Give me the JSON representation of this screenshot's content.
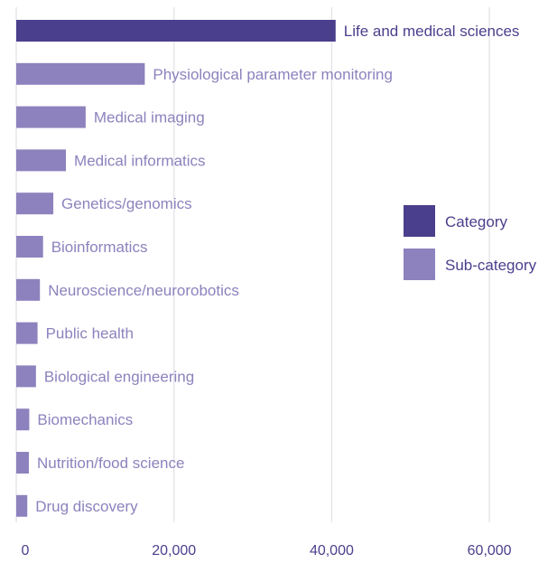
{
  "chart_data": {
    "type": "bar",
    "orientation": "horizontal",
    "title": "",
    "xlabel": "",
    "ylabel": "",
    "xlim": [
      0,
      68000
    ],
    "x_ticks": [
      0,
      20000,
      40000,
      60000
    ],
    "x_tick_labels": [
      "0",
      "20,000",
      "40,000",
      "60,000"
    ],
    "grid": "vertical",
    "legend_position": "right",
    "colors": {
      "category": "#4a3f8c",
      "sub_category": "#8d82bd",
      "grid": "#e6e6ec",
      "axis_text": "#4a3f8c"
    },
    "legend": [
      {
        "label": "Category",
        "group": "category"
      },
      {
        "label": "Sub-category",
        "group": "sub_category"
      }
    ],
    "categories": [
      "Life and medical sciences",
      "Physiological parameter monitoring",
      "Medical imaging",
      "Medical informatics",
      "Genetics/genomics",
      "Bioinformatics",
      "Neuroscience/neurorobotics",
      "Public health",
      "Biological engineering",
      "Biomechanics",
      "Nutrition/food science",
      "Drug discovery"
    ],
    "values": [
      40500,
      16300,
      8800,
      6300,
      4700,
      3400,
      3000,
      2700,
      2500,
      1650,
      1600,
      1400
    ],
    "groups": [
      "category",
      "sub_category",
      "sub_category",
      "sub_category",
      "sub_category",
      "sub_category",
      "sub_category",
      "sub_category",
      "sub_category",
      "sub_category",
      "sub_category",
      "sub_category"
    ]
  }
}
